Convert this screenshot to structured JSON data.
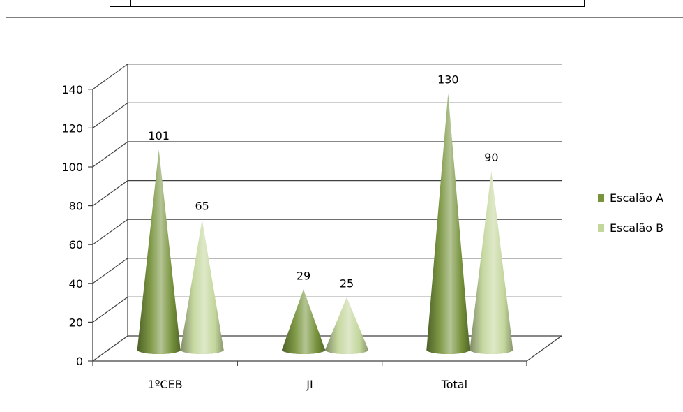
{
  "chart_data": {
    "type": "bar",
    "style": "3d-cone",
    "categories": [
      "1ºCEB",
      "JI",
      "Total"
    ],
    "series": [
      {
        "name": "Escalão A",
        "values": [
          101,
          29,
          130
        ],
        "color": "#77933c"
      },
      {
        "name": "Escalão B",
        "values": [
          65,
          25,
          90
        ],
        "color": "#c3d69b"
      }
    ],
    "yticks": [
      0,
      20,
      40,
      60,
      80,
      100,
      120,
      140
    ],
    "ylim": [
      0,
      140
    ],
    "grid": true,
    "legend": "right",
    "data_labels": true
  }
}
